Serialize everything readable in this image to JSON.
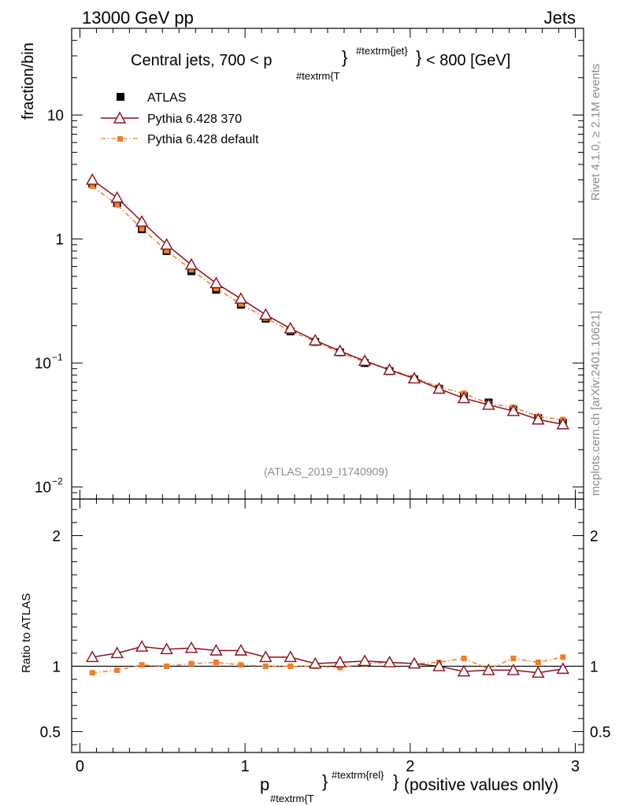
{
  "header": {
    "energy": "13000 GeV pp",
    "category": "Jets"
  },
  "side_labels": {
    "rivet": "Rivet 4.1.0, ≥ 2.1M events",
    "mcplots": "mcplots.cern.ch [arXiv:2401.10621]"
  },
  "chart_data": {
    "type": "line",
    "title": "Central jets, 700 < p_{#textrm{T}}^{#textrm{jet}} < 800 [GeV]",
    "title_parts": {
      "pre": "Central jets, 700 < p",
      "sub": "#textrm{T",
      "sup": "#textrm{jet}",
      "post": "< 800 [GeV]"
    },
    "xlabel_parts": {
      "main": "p",
      "sub": "#textrm{T",
      "sup": "#textrm{rel}",
      "post": "(positive values only)"
    },
    "ylabel": "fraction/bin",
    "ratio_ylabel": "Ratio to ATLAS",
    "analysis_id": "(ATLAS_2019_I1740909)",
    "xlim": [
      -0.05,
      3.05
    ],
    "ylim_log": [
      0.008,
      50
    ],
    "ratio_ylim": [
      0.34,
      2.28
    ],
    "x_ticks": [
      "0",
      "1",
      "2",
      "3"
    ],
    "x_tick_values": [
      0,
      1,
      2,
      3
    ],
    "y_ticks": [
      {
        "base": "10",
        "exp": "−2",
        "value": 0.01
      },
      {
        "base": "10",
        "exp": "−1",
        "value": 0.1
      },
      {
        "base": "1",
        "exp": "",
        "value": 1
      },
      {
        "base": "10",
        "exp": "",
        "value": 10
      }
    ],
    "ratio_ticks": [
      "0.5",
      "1",
      "2"
    ],
    "ratio_tick_values": [
      0.5,
      1,
      2
    ],
    "x": [
      0.075,
      0.225,
      0.375,
      0.525,
      0.675,
      0.825,
      0.975,
      1.125,
      1.275,
      1.425,
      1.575,
      1.725,
      1.875,
      2.025,
      2.175,
      2.325,
      2.475,
      2.625,
      2.775,
      2.925
    ],
    "series": [
      {
        "name": "ATLAS",
        "color": "#000000",
        "marker": "square",
        "values": [
          2.8,
          1.95,
          1.2,
          0.8,
          0.55,
          0.39,
          0.295,
          0.228,
          0.18,
          0.148,
          0.122,
          0.1,
          0.086,
          0.074,
          0.062,
          0.054,
          0.048,
          0.042,
          0.036,
          0.033
        ]
      },
      {
        "name": "Pythia 6.428 370",
        "color": "#8b0f1d",
        "marker": "triangle",
        "values": [
          3.0,
          2.15,
          1.38,
          0.9,
          0.62,
          0.44,
          0.33,
          0.245,
          0.19,
          0.152,
          0.125,
          0.104,
          0.088,
          0.075,
          0.062,
          0.052,
          0.046,
          0.041,
          0.035,
          0.032
        ]
      },
      {
        "name": "Pythia 6.428 default",
        "color": "#f07d2a",
        "marker": "small-square",
        "values": [
          2.66,
          1.89,
          1.21,
          0.805,
          0.565,
          0.4,
          0.3,
          0.23,
          0.181,
          0.149,
          0.121,
          0.102,
          0.089,
          0.076,
          0.064,
          0.057,
          0.047,
          0.044,
          0.037,
          0.035
        ]
      }
    ],
    "ratios": [
      {
        "name": "Pythia 6.428 370",
        "values": [
          1.07,
          1.1,
          1.15,
          1.13,
          1.14,
          1.12,
          1.12,
          1.07,
          1.07,
          1.02,
          1.03,
          1.04,
          1.03,
          1.02,
          1.0,
          0.96,
          0.97,
          0.97,
          0.95,
          0.98
        ]
      },
      {
        "name": "Pythia 6.428 default",
        "values": [
          0.95,
          0.97,
          1.01,
          1.0,
          1.02,
          1.03,
          1.01,
          1.0,
          1.0,
          1.0,
          0.99,
          1.02,
          1.03,
          1.02,
          1.03,
          1.06,
          0.98,
          1.06,
          1.03,
          1.07
        ]
      }
    ],
    "legend_position": "top-left"
  }
}
